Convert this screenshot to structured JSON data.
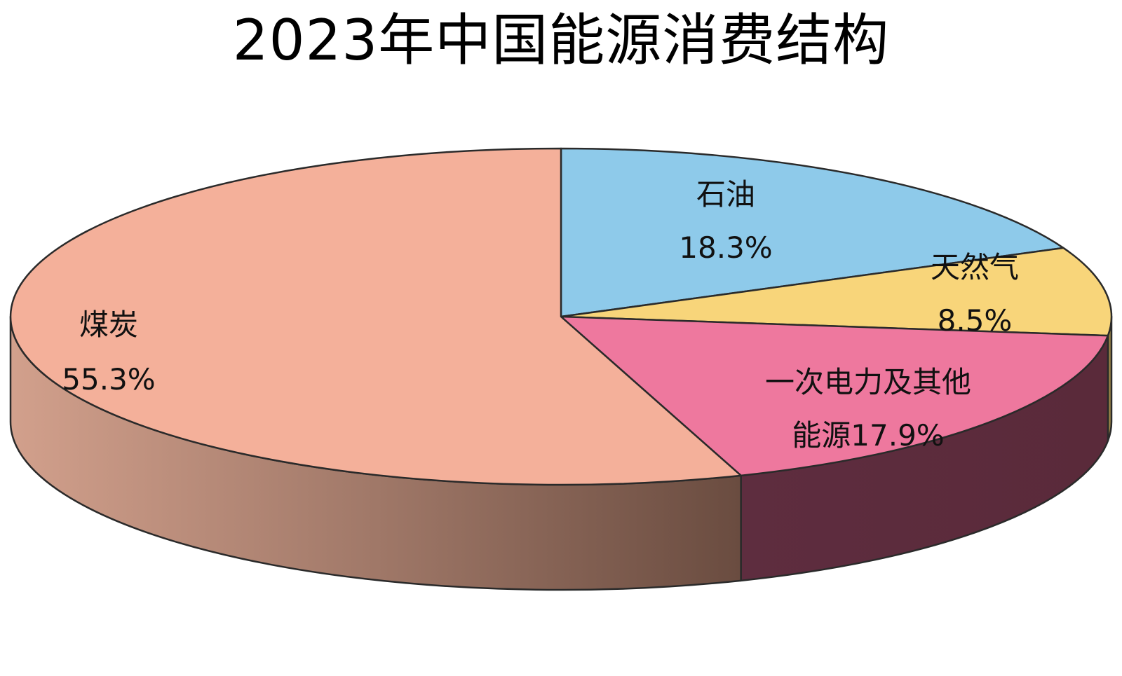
{
  "chart_data": {
    "type": "pie",
    "title": "2023年中国能源消费结构",
    "categories": [
      "石油",
      "天然气",
      "一次电力及其他能源",
      "煤炭"
    ],
    "values": [
      18.3,
      8.5,
      17.9,
      55.3
    ],
    "unit": "%",
    "labels": [
      {
        "line1": "石油",
        "line2": "18.3%"
      },
      {
        "line1": "天然气",
        "line2": "8.5%"
      },
      {
        "line1": "一次电力及其他",
        "line2": "能源17.9%"
      },
      {
        "line1": "煤炭",
        "line2": "55.3%"
      }
    ],
    "colors": [
      "#8ECAEA",
      "#F8D57A",
      "#EE789E",
      "#F4B09A"
    ],
    "side_colors": [
      "#5C7E94",
      "#9C8648",
      "#5E2D3F",
      "#C48E7C"
    ],
    "style": "3d",
    "legend": "none"
  }
}
